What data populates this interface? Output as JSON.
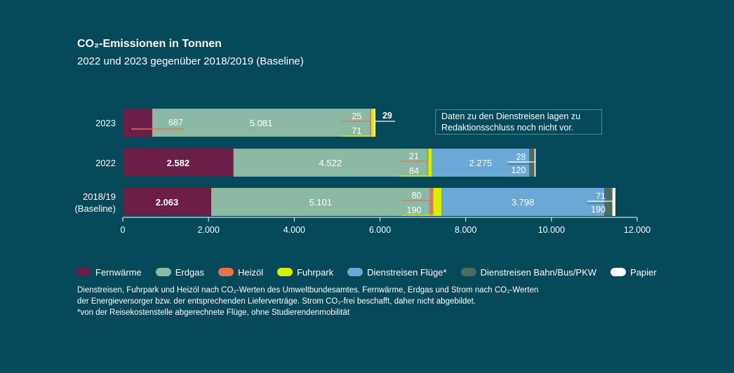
{
  "header": {
    "title": "CO₂-Emissionen in Tonnen",
    "subtitle": "2022 und 2023 gegenüber 2018/2019 (Baseline)"
  },
  "note": {
    "line1": "Daten zu den Dienstreisen lagen zu",
    "line2": "Redaktionsschluss noch nicht vor."
  },
  "chart_data": {
    "type": "bar",
    "orientation": "horizontal",
    "stacked": true,
    "title": "CO₂-Emissionen in Tonnen",
    "subtitle": "2022 und 2023 gegenüber 2018/2019 (Baseline)",
    "categories": [
      "2023",
      "2022",
      "2018/19 (Baseline)"
    ],
    "category_lines": [
      [
        "2023"
      ],
      [
        "2022"
      ],
      [
        "2018/19",
        "(Baseline)"
      ]
    ],
    "xlim": [
      0,
      12000
    ],
    "xticks": [
      0,
      2000,
      4000,
      6000,
      8000,
      10000,
      12000
    ],
    "xtick_labels": [
      "0",
      "2.000",
      "4.000",
      "6.000",
      "8.000",
      "10.000",
      "12.000"
    ],
    "grid": false,
    "legend_position": "bottom",
    "series": [
      {
        "name": "Fernwärme",
        "color": "#6b1e46",
        "values": [
          687,
          2582,
          2063
        ]
      },
      {
        "name": "Erdgas",
        "color": "#8cb9a4",
        "values": [
          5081,
          4522,
          5101
        ]
      },
      {
        "name": "Heizöl",
        "color": "#e8744f",
        "values": [
          25,
          21,
          80
        ]
      },
      {
        "name": "Fuhrpark",
        "color": "#d8f000",
        "values": [
          71,
          84,
          190
        ]
      },
      {
        "name": "Dienstreisen Flüge*",
        "color": "#6ba8d6",
        "values": [
          0,
          2275,
          3798
        ]
      },
      {
        "name": "Dienstreisen Bahn/Bus/PKW",
        "color": "#4b6d5e",
        "values": [
          0,
          120,
          190
        ]
      },
      {
        "name": "Papier",
        "color": "#ffffff",
        "values": [
          29,
          28,
          71
        ]
      }
    ],
    "data_labels": [
      [
        "687",
        "5.081",
        "25",
        "71",
        "",
        "",
        "29"
      ],
      [
        "2.582",
        "4.522",
        "21",
        "84",
        "2.275",
        "120",
        "28"
      ],
      [
        "2.063",
        "5.101",
        "80",
        "190",
        "3.798",
        "190",
        "71"
      ]
    ]
  },
  "footnotes": {
    "line1": "Dienstreisen, Fuhrpark und Heizöl nach CO₂-Werten des Umweltbundesamtes. Fernwärme, Erdgas und Strom nach  CO₂-Werten",
    "line2": "der Energieversorger bzw. der entsprechenden Lieferverträge. Strom CO₂-frei beschafft, daher nicht abgebildet.",
    "line3": "*von der Reisekostenstelle abgerechnete Flüge, ohne Studierendenmobilität"
  }
}
